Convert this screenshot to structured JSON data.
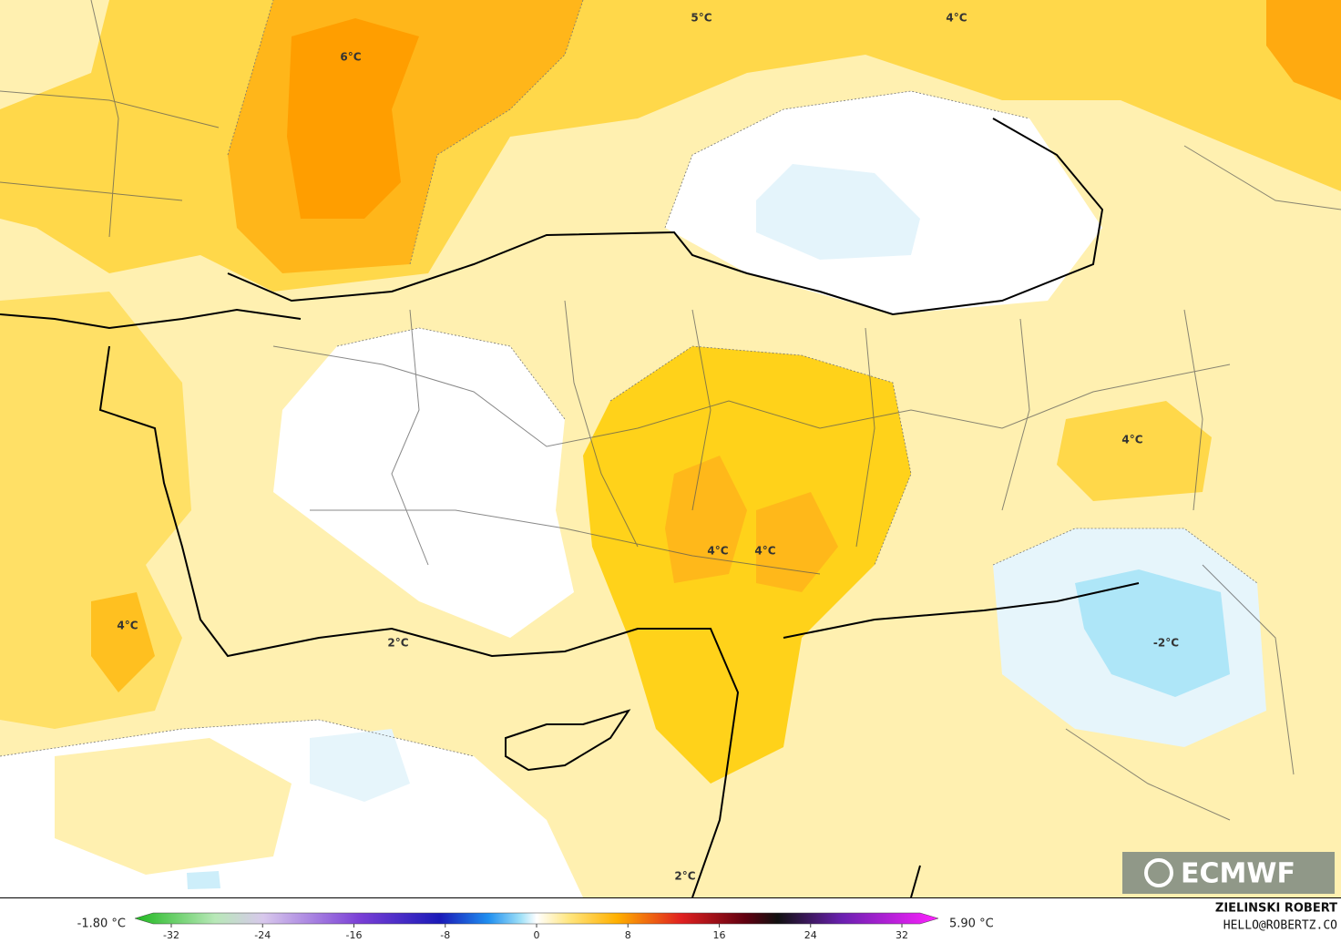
{
  "map": {
    "contour_labels": [
      "6°C",
      "5°C",
      "4°C",
      "4°C",
      "4°C",
      "4°C",
      "4°C",
      "2°C",
      "2°C",
      "-2°C"
    ],
    "logo": "ECMWF"
  },
  "colorbar": {
    "min_label": "-1.80 °C",
    "max_label": "5.90 °C",
    "ticks": [
      -32,
      -24,
      -16,
      -8,
      0,
      8,
      16,
      24,
      32
    ]
  },
  "credits": {
    "author": "ZIELINSKI ROBERT",
    "contact": "HELLO@ROBERTZ.CO"
  }
}
